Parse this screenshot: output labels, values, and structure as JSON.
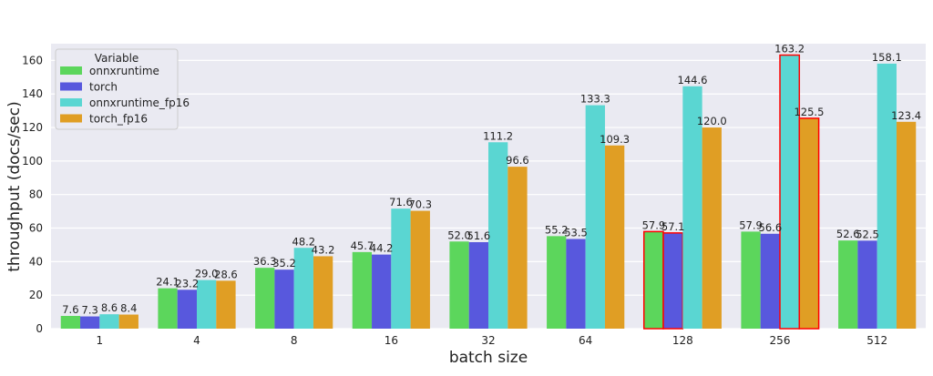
{
  "chart_data": {
    "type": "bar",
    "xlabel": "batch size",
    "ylabel": "throughput (docs/sec)",
    "ylim": [
      0,
      170
    ],
    "yticks": [
      0,
      20,
      40,
      60,
      80,
      100,
      120,
      140,
      160
    ],
    "grid": true,
    "legend": {
      "title": "Variable",
      "placement": "top-left"
    },
    "categories": [
      "1",
      "4",
      "8",
      "16",
      "32",
      "64",
      "128",
      "256",
      "512"
    ],
    "series": [
      {
        "name": "onnxruntime",
        "color": "#5cd65c",
        "values": [
          7.6,
          24.1,
          36.3,
          45.7,
          52.0,
          55.2,
          57.9,
          57.9,
          52.6
        ]
      },
      {
        "name": "torch",
        "color": "#5858dd",
        "values": [
          7.3,
          23.2,
          35.2,
          44.2,
          51.6,
          53.5,
          57.1,
          56.6,
          52.5
        ]
      },
      {
        "name": "onnxruntime_fp16",
        "color": "#5ad6d2",
        "values": [
          8.6,
          29.0,
          48.2,
          71.6,
          111.2,
          133.3,
          144.6,
          163.2,
          158.1
        ]
      },
      {
        "name": "torch_fp16",
        "color": "#e09e24",
        "values": [
          8.4,
          28.6,
          43.2,
          70.3,
          96.6,
          109.3,
          120.0,
          125.5,
          123.4
        ]
      }
    ],
    "highlighted": [
      {
        "category": "128",
        "series": "onnxruntime",
        "outline": "#ff0000"
      },
      {
        "category": "128",
        "series": "torch",
        "outline": "#ff0000"
      },
      {
        "category": "256",
        "series": "onnxruntime_fp16",
        "outline": "#ff0000"
      },
      {
        "category": "256",
        "series": "torch_fp16",
        "outline": "#ff0000"
      }
    ],
    "colors": {
      "plot_background": "#eaeaf2",
      "grid": "#ffffff"
    }
  }
}
